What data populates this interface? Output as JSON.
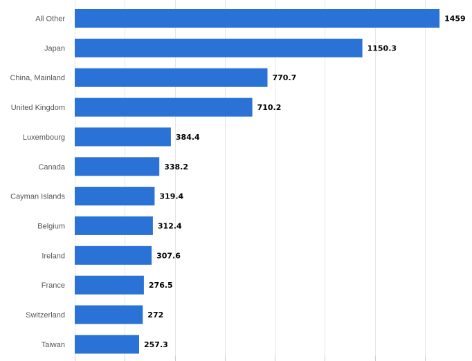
{
  "chart_data": {
    "type": "bar",
    "orientation": "horizontal",
    "title": "",
    "xlabel": "",
    "ylabel": "",
    "categories": [
      "All Other",
      "Japan",
      "China, Mainland",
      "United Kingdom",
      "Luxembourg",
      "Canada",
      "Cayman Islands",
      "Belgium",
      "Ireland",
      "France",
      "Switzerland",
      "Taiwan"
    ],
    "values": [
      1459,
      1150.3,
      770.7,
      710.2,
      384.4,
      338.2,
      319.4,
      312.4,
      307.6,
      276.5,
      272,
      257.3
    ],
    "value_labels": [
      "1459",
      "1150.3",
      "770.7",
      "710.2",
      "384.4",
      "338.2",
      "319.4",
      "312.4",
      "307.6",
      "276.5",
      "272",
      "257.3"
    ],
    "xlim": [
      0,
      1600
    ],
    "grid": true,
    "legend": "none",
    "bar_color": "#2a72d5",
    "grid_color": "#e6e6e6"
  }
}
